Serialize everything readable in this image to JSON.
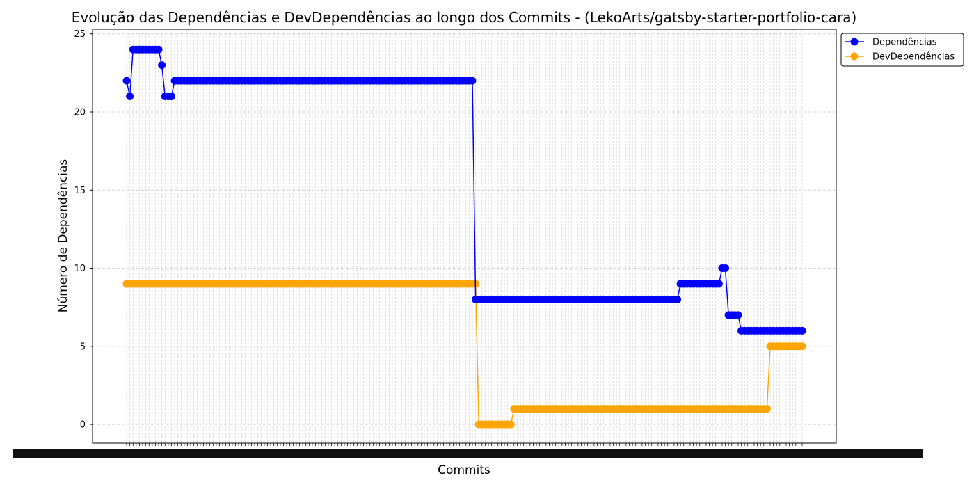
{
  "chart_data": {
    "type": "line",
    "title": "Evolução das Dependências e DevDependências ao longo dos Commits - (LekoArts/gatsby-starter-portfolio-cara)",
    "xlabel": "Commits",
    "ylabel": "Número de Dependências",
    "ylim": [
      -1.2,
      25.3
    ],
    "yticks": [
      0,
      5,
      10,
      15,
      20,
      25
    ],
    "grid": true,
    "legend_position": "outside top-right",
    "x_commit_count": 212,
    "x_tick_labels_note": "overlapping commit hash labels (illegible)",
    "series": [
      {
        "name": "Dependências",
        "color": "#0000ff",
        "runs": [
          {
            "value": 22,
            "count": 1
          },
          {
            "value": 21,
            "count": 1
          },
          {
            "value": 24,
            "count": 9
          },
          {
            "value": 23,
            "count": 1
          },
          {
            "value": 21,
            "count": 3
          },
          {
            "value": 22,
            "count": 94
          },
          {
            "value": 8,
            "count": 64
          },
          {
            "value": 9,
            "count": 13
          },
          {
            "value": 10,
            "count": 2
          },
          {
            "value": 7,
            "count": 4
          },
          {
            "value": 6,
            "count": 20
          }
        ]
      },
      {
        "name": "DevDependências",
        "color": "#ffa500",
        "runs": [
          {
            "value": 9,
            "count": 110
          },
          {
            "value": 0,
            "count": 11
          },
          {
            "value": 1,
            "count": 80
          },
          {
            "value": 5,
            "count": 11
          }
        ]
      }
    ]
  }
}
